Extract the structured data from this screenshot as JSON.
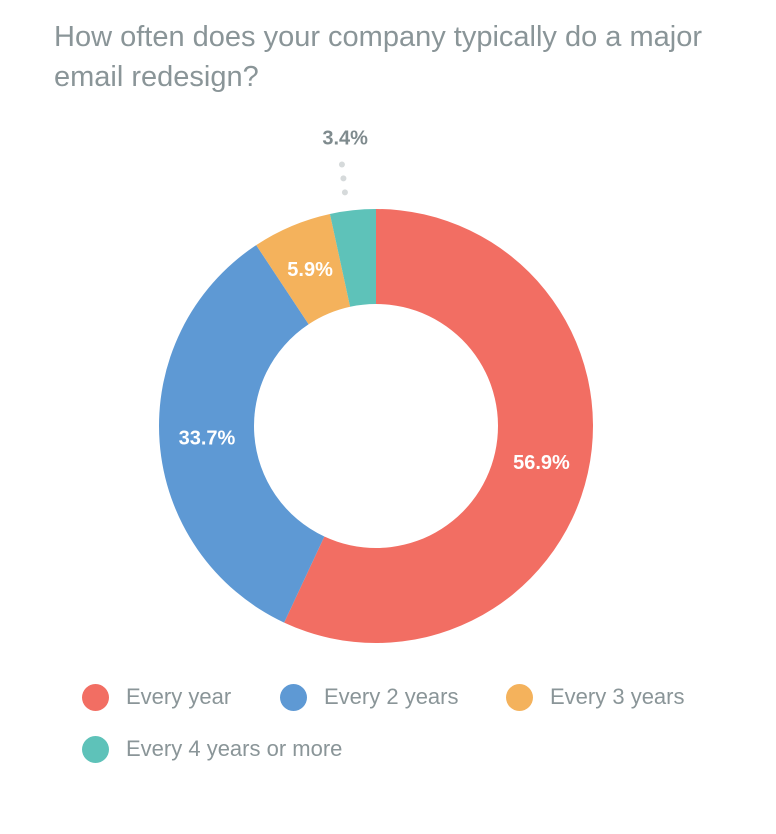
{
  "chart_data": {
    "type": "pie",
    "variant": "donut",
    "title": "How often does your company typically do a major email redesign?",
    "slices": [
      {
        "name": "Every year",
        "value": 56.9,
        "label": "56.9%",
        "color": "#f26e63"
      },
      {
        "name": "Every 2 years",
        "value": 33.7,
        "label": "33.7%",
        "color": "#5e99d4"
      },
      {
        "name": "Every 3 years",
        "value": 5.9,
        "label": "5.9%",
        "color": "#f4b25c"
      },
      {
        "name": "Every 4 years or more",
        "value": 3.4,
        "label": "3.4%",
        "color": "#5ec2b9"
      }
    ],
    "legend_position": "bottom",
    "label_colors": {
      "inside": "#ffffff",
      "outside": "#7f8b8e"
    }
  }
}
